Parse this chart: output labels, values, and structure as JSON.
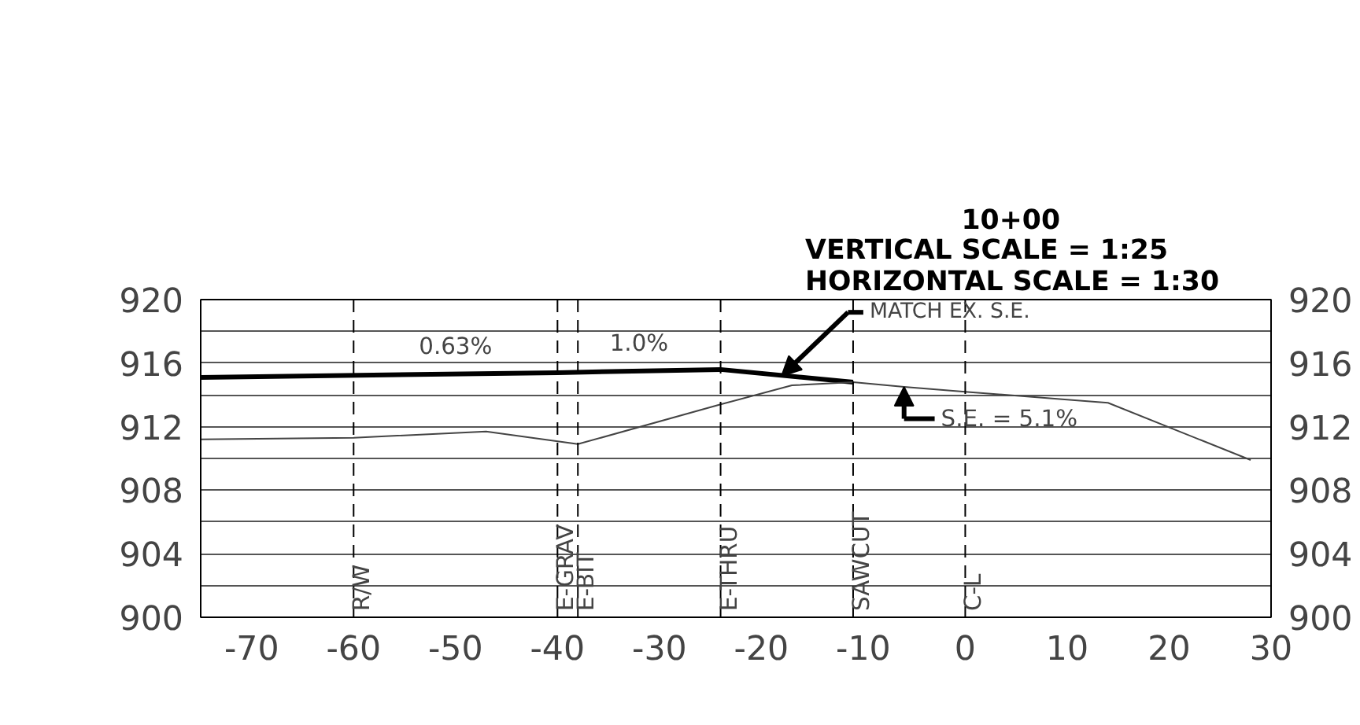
{
  "chart_data": {
    "type": "line",
    "title": "10+00",
    "subtitle": "VERTICAL SCALE = 1:25\nHORIZONTAL SCALE = 1:30",
    "series": [
      {
        "color": "#000000",
        "x": [
          -75,
          -40,
          -24,
          -11
        ],
        "values": [
          915.1,
          915.4,
          915.6,
          914.8
        ]
      },
      {
        "color": "#444444",
        "x": [
          -75,
          -60,
          -47,
          -38,
          -24,
          -17,
          -11,
          -6,
          0,
          14,
          28
        ],
        "values": [
          911.2,
          911.3,
          911.7,
          910.9,
          913.4,
          914.6,
          914.8,
          914.5,
          914.2,
          913.5,
          909.9
        ]
      }
    ],
    "xlim": [
      -75,
      30
    ],
    "xticks": [
      -70,
      -60,
      -50,
      -40,
      -30,
      -20,
      -10,
      0,
      10,
      20,
      30
    ],
    "ylim": [
      900,
      920
    ],
    "yticks": [
      900,
      {
        "value": 902,
        "label": null
      },
      904,
      {
        "value": 906,
        "label": null
      },
      908,
      {
        "value": 910,
        "label": null
      },
      912,
      {
        "value": 914,
        "label": null
      },
      916,
      {
        "value": 918,
        "label": null
      },
      920
    ],
    "y2lim": [
      900,
      920
    ],
    "y2ticks": [
      900,
      904,
      908,
      912,
      916,
      920
    ],
    "grid": "y",
    "marker": "none",
    "line_style": "solid",
    "ref_lines": [
      {
        "axis": "x",
        "value": -60,
        "label": "R/W",
        "line_style": "dashed",
        "color": "#000000"
      },
      {
        "axis": "x",
        "value": -40,
        "label": "E-GRAV",
        "line_style": "dashed",
        "color": "#000000"
      },
      {
        "axis": "x",
        "value": -38,
        "label": "E-BIT",
        "line_style": "dashed",
        "color": "#000000"
      },
      {
        "axis": "x",
        "value": -24,
        "label": "E-THRU",
        "line_style": "dashed",
        "color": "#000000"
      },
      {
        "axis": "x",
        "value": -11,
        "label": "SAWCUT",
        "line_style": "dashed",
        "color": "#000000"
      },
      {
        "axis": "x",
        "value": 0,
        "label": "C-L",
        "line_style": "dashed",
        "color": "#000000"
      }
    ],
    "annotations": [
      {
        "text": "0.63%",
        "x": -50,
        "y": 915.3
      },
      {
        "text": "1.0%",
        "x": -32,
        "y": 915.5
      },
      {
        "text": "MATCH EX. S.E.",
        "x": -18,
        "y": 915.2
      },
      {
        "text": "S.E.  = 5.1%",
        "x": -6,
        "y": 914.5
      }
    ]
  }
}
